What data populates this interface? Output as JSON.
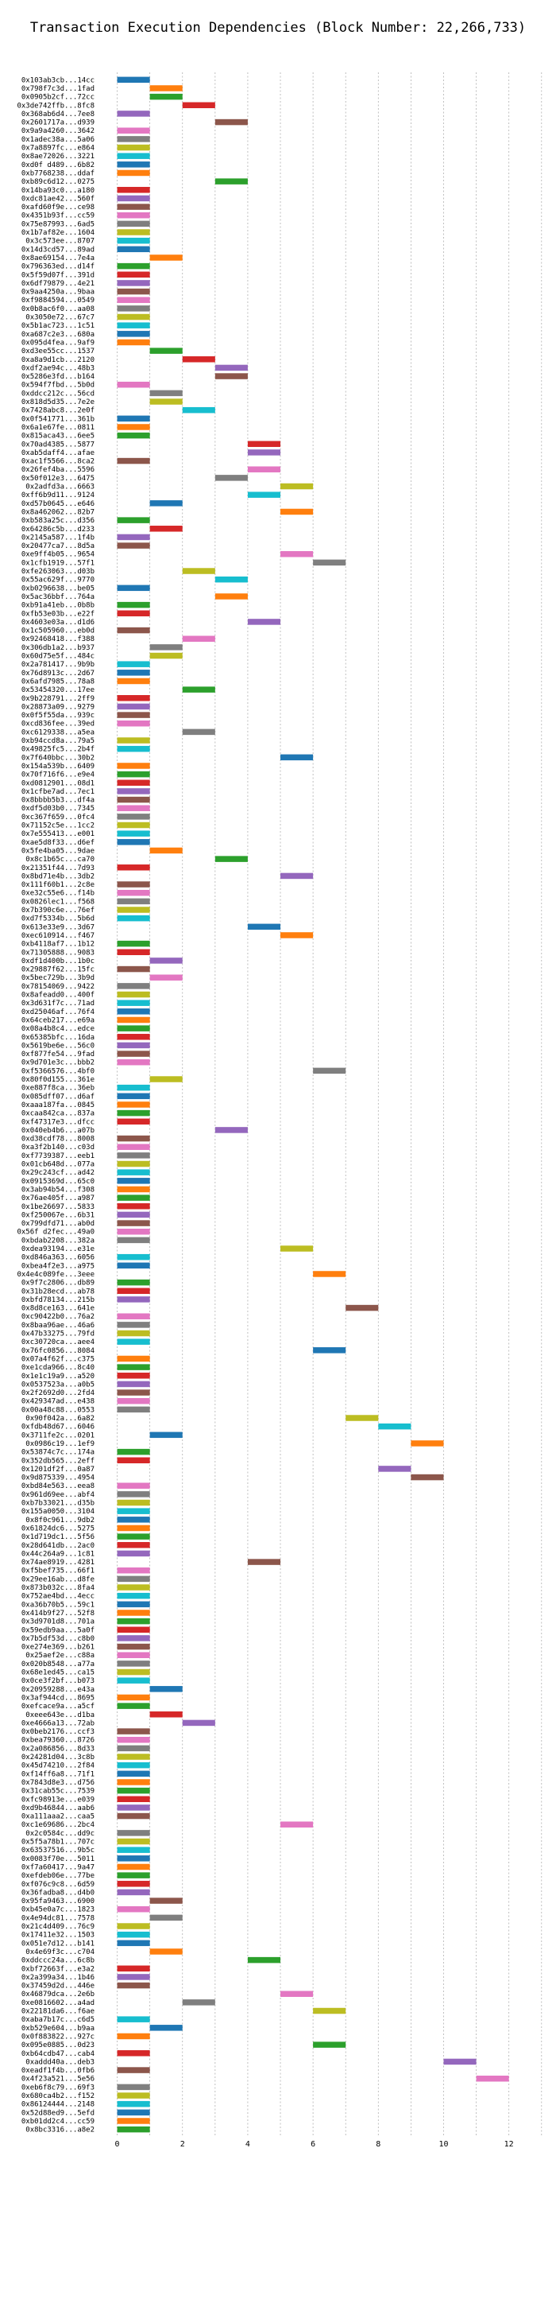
{
  "chart_data": {
    "type": "bar",
    "orientation": "horizontal",
    "title": "Transaction Execution Dependencies (Block Number: 22,266,733)",
    "xlabel": "",
    "ylabel": "",
    "xlim": [
      -0.5,
      13.2
    ],
    "xticks": [
      0,
      2,
      4,
      6,
      8,
      10,
      12
    ],
    "grid": "vertical dotted",
    "bar_width": 1,
    "palette": [
      "#1f77b4",
      "#ff7f0e",
      "#2ca02c",
      "#d62728",
      "#9467bd",
      "#8c564b",
      "#e377c2",
      "#7f7f7f",
      "#bcbd22",
      "#17becf"
    ],
    "transactions": [
      {
        "label": "0x103ab3cb...14cc",
        "start": 0
      },
      {
        "label": "0x798f7c3d...1fad",
        "start": 1
      },
      {
        "label": "0x0905b2cf...72cc",
        "start": 1
      },
      {
        "label": "0x3de742ffb...8fc8",
        "start": 2
      },
      {
        "label": "0x368ab6d4...7ee8",
        "start": 0
      },
      {
        "label": "0x2601717a...d939",
        "start": 3
      },
      {
        "label": "0x9a9a4260...3642",
        "start": 0
      },
      {
        "label": "0x1adec38a...5a06",
        "start": 0
      },
      {
        "label": "0x7a8897fc...e864",
        "start": 0
      },
      {
        "label": "0x8ae72026...3221",
        "start": 0
      },
      {
        "label": "0xd0f d489...6b82",
        "start": 0
      },
      {
        "label": "0xb7768238...ddaf",
        "start": 0
      },
      {
        "label": "0xb89c6d12...0275",
        "start": 3
      },
      {
        "label": "0x14ba93c0...a180",
        "start": 0
      },
      {
        "label": "0xdc81ae42...560f",
        "start": 0
      },
      {
        "label": "0xafd60f9e...ce98",
        "start": 0
      },
      {
        "label": "0x4351b93f...cc59",
        "start": 0
      },
      {
        "label": "0x75e87993...6ad5",
        "start": 0
      },
      {
        "label": "0x1b7af82e...1604",
        "start": 0
      },
      {
        "label": "0x3c573ee...8707",
        "start": 0
      },
      {
        "label": "0x14d3cd57...89ad",
        "start": 0
      },
      {
        "label": "0x8ae69154...7e4a",
        "start": 1
      },
      {
        "label": "0x796363ed...d14f",
        "start": 0
      },
      {
        "label": "0x5f59d07f...391d",
        "start": 0
      },
      {
        "label": "0x6df79879...4e21",
        "start": 0
      },
      {
        "label": "0x9aa4250a...9baa",
        "start": 0
      },
      {
        "label": "0xf9884594...0549",
        "start": 0
      },
      {
        "label": "0x0b8ac6f0...aa08",
        "start": 0
      },
      {
        "label": "0x3050e72...67c7",
        "start": 0
      },
      {
        "label": "0x5b1ac723...1c51",
        "start": 0
      },
      {
        "label": "0xa687c2e3...680a",
        "start": 0
      },
      {
        "label": "0x095d4fea...9af9",
        "start": 0
      },
      {
        "label": "0xd3ee55cc...1537",
        "start": 1
      },
      {
        "label": "0xa8a9d1cb...2120",
        "start": 2
      },
      {
        "label": "0xdf2ae94c...48b3",
        "start": 3
      },
      {
        "label": "0x5286e3fd...b164",
        "start": 3
      },
      {
        "label": "0x594f7fbd...5b0d",
        "start": 0
      },
      {
        "label": "0xddcc212c...56cd",
        "start": 1
      },
      {
        "label": "0x818d5d35...7e2e",
        "start": 1
      },
      {
        "label": "0x7428abc8...2e0f",
        "start": 2
      },
      {
        "label": "0x0f541771...361b",
        "start": 0
      },
      {
        "label": "0x6a1e67fe...0811",
        "start": 0
      },
      {
        "label": "0x815aca43...6ee5",
        "start": 0
      },
      {
        "label": "0x70ad4385...5877",
        "start": 4
      },
      {
        "label": "0xab5daff4...afae",
        "start": 4
      },
      {
        "label": "0xac1f5566...8ca2",
        "start": 0
      },
      {
        "label": "0x26fef4ba...5596",
        "start": 4
      },
      {
        "label": "0x50f012e3...6475",
        "start": 3
      },
      {
        "label": "0x2adfd3a...6663",
        "start": 5
      },
      {
        "label": "0xff6b9d11...9124",
        "start": 4
      },
      {
        "label": "0xd57b0645...e646",
        "start": 1
      },
      {
        "label": "0x8a462062...82b7",
        "start": 5
      },
      {
        "label": "0xb583a25c...d356",
        "start": 0
      },
      {
        "label": "0x64286c5b...d233",
        "start": 1
      },
      {
        "label": "0x2145a587...1f4b",
        "start": 0
      },
      {
        "label": "0x20477ca7...8d5a",
        "start": 0
      },
      {
        "label": "0xe9ff4b05...9654",
        "start": 5
      },
      {
        "label": "0x1cfb1919...57f1",
        "start": 6
      },
      {
        "label": "0xfe263063...d03b",
        "start": 2
      },
      {
        "label": "0x55ac629f...9770",
        "start": 3
      },
      {
        "label": "0xb0296638...be05",
        "start": 0
      },
      {
        "label": "0x5ac36bbf...764a",
        "start": 3
      },
      {
        "label": "0xb91a41eb...0b8b",
        "start": 0
      },
      {
        "label": "0xfb53e03b...e22f",
        "start": 0
      },
      {
        "label": "0x4603e03a...d1d6",
        "start": 4
      },
      {
        "label": "0x1c505960...eb0d",
        "start": 0
      },
      {
        "label": "0x92468418...f388",
        "start": 2
      },
      {
        "label": "0x306db1a2...b937",
        "start": 1
      },
      {
        "label": "0x60d75e5f...484c",
        "start": 1
      },
      {
        "label": "0x2a781417...9b9b",
        "start": 0
      },
      {
        "label": "0x76d8913c...2d67",
        "start": 0
      },
      {
        "label": "0x6afd7985...78a8",
        "start": 0
      },
      {
        "label": "0x53454320...17ee",
        "start": 2
      },
      {
        "label": "0x9b228791...2ff9",
        "start": 0
      },
      {
        "label": "0x28873a09...9279",
        "start": 0
      },
      {
        "label": "0x0f5f55da...939c",
        "start": 0
      },
      {
        "label": "0xcd836fee...39ed",
        "start": 0
      },
      {
        "label": "0xc6129338...a5ea",
        "start": 2
      },
      {
        "label": "0xb94ccd8a...79a5",
        "start": 0
      },
      {
        "label": "0x49825fc5...2b4f",
        "start": 0
      },
      {
        "label": "0x7f640bbc...30b2",
        "start": 5
      },
      {
        "label": "0x154a539b...6409",
        "start": 0
      },
      {
        "label": "0x70f716f6...e9e4",
        "start": 0
      },
      {
        "label": "0xd0812901...08d1",
        "start": 0
      },
      {
        "label": "0x1cfbe7ad...7ec1",
        "start": 0
      },
      {
        "label": "0x8bbbb5b3...df4a",
        "start": 0
      },
      {
        "label": "0xdf5d03b0...7345",
        "start": 0
      },
      {
        "label": "0xc367f659...0fc4",
        "start": 0
      },
      {
        "label": "0x71152c5e...1cc2",
        "start": 0
      },
      {
        "label": "0x7e555413...e001",
        "start": 0
      },
      {
        "label": "0xae5d8f33...d6ef",
        "start": 0
      },
      {
        "label": "0x5fe4ba05...9dae",
        "start": 1
      },
      {
        "label": "0x8c1b65c...ca70",
        "start": 3
      },
      {
        "label": "0x21351f44...7d93",
        "start": 0
      },
      {
        "label": "0x8bd71e4b...3db2",
        "start": 5
      },
      {
        "label": "0x111f60b1...2c8e",
        "start": 0
      },
      {
        "label": "0xe32c55e6...f14b",
        "start": 0
      },
      {
        "label": "0x0826lec1...f568",
        "start": 0
      },
      {
        "label": "0x7b390c6e...76ef",
        "start": 0
      },
      {
        "label": "0xd7f5334b...5b6d",
        "start": 0
      },
      {
        "label": "0x613e33e9...3d67",
        "start": 4
      },
      {
        "label": "0xec610914...f467",
        "start": 5
      },
      {
        "label": "0xb4118af7...1b12",
        "start": 0
      },
      {
        "label": "0x71305888...9083",
        "start": 0
      },
      {
        "label": "0xdf1d400b...1b0c",
        "start": 1
      },
      {
        "label": "0x29887f62...15fc",
        "start": 0
      },
      {
        "label": "0x5bec729b...3b9d",
        "start": 1
      },
      {
        "label": "0x78154069...9422",
        "start": 0
      },
      {
        "label": "0x8afeadd0...400f",
        "start": 0
      },
      {
        "label": "0x3d631f7c...71ad",
        "start": 0
      },
      {
        "label": "0xd25046af...76f4",
        "start": 0
      },
      {
        "label": "0x64ceb217...e69a",
        "start": 0
      },
      {
        "label": "0x08a4b8c4...edce",
        "start": 0
      },
      {
        "label": "0x65385bfc...16da",
        "start": 0
      },
      {
        "label": "0x5619be6e...56c0",
        "start": 0
      },
      {
        "label": "0xf877fe54...9fad",
        "start": 0
      },
      {
        "label": "0x9d701e3c...bbb2",
        "start": 0
      },
      {
        "label": "0xf5366576...4bf0",
        "start": 6
      },
      {
        "label": "0x80f0d155...361e",
        "start": 1
      },
      {
        "label": "0xe887f8ca...36eb",
        "start": 0
      },
      {
        "label": "0x085dff07...d6af",
        "start": 0
      },
      {
        "label": "0xaaa187fa...0845",
        "start": 0
      },
      {
        "label": "0xcaa842ca...837a",
        "start": 0
      },
      {
        "label": "0xf47317e3...dfcc",
        "start": 0
      },
      {
        "label": "0x040eb4b6...a07b",
        "start": 3
      },
      {
        "label": "0xd38cdf78...8008",
        "start": 0
      },
      {
        "label": "0xa3f2b140...c03d",
        "start": 0
      },
      {
        "label": "0xf7739387...eeb1",
        "start": 0
      },
      {
        "label": "0x01cb648d...077a",
        "start": 0
      },
      {
        "label": "0x29c243cf...ad42",
        "start": 0
      },
      {
        "label": "0x0915369d...65c0",
        "start": 0
      },
      {
        "label": "0x3ab94b54...f308",
        "start": 0
      },
      {
        "label": "0x76ae405f...a987",
        "start": 0
      },
      {
        "label": "0x1be26697...5833",
        "start": 0
      },
      {
        "label": "0xf250067e...6b31",
        "start": 0
      },
      {
        "label": "0x799dfd71...ab0d",
        "start": 0
      },
      {
        "label": "0x56f d2fec...49a0",
        "start": 0
      },
      {
        "label": "0xbdab2208...382a",
        "start": 0
      },
      {
        "label": "0xdea93194...e31e",
        "start": 5
      },
      {
        "label": "0xd846a363...6056",
        "start": 0
      },
      {
        "label": "0xbea4f2e3...a975",
        "start": 0
      },
      {
        "label": "0x4e4c089fe...3eee",
        "start": 6
      },
      {
        "label": "0x9f7c2806...db89",
        "start": 0
      },
      {
        "label": "0x31b28ecd...ab78",
        "start": 0
      },
      {
        "label": "0xbfd78134...215b",
        "start": 0
      },
      {
        "label": "0x8d8ce163...641e",
        "start": 7
      },
      {
        "label": "0xc90422b0...76a2",
        "start": 0
      },
      {
        "label": "0x8baa96ae...46a6",
        "start": 0
      },
      {
        "label": "0x47b33275...79fd",
        "start": 0
      },
      {
        "label": "0xc30720ca...aee4",
        "start": 0
      },
      {
        "label": "0x76fc0856...8084",
        "start": 6
      },
      {
        "label": "0x07a4f62f...c375",
        "start": 0
      },
      {
        "label": "0xe1cda966...8c40",
        "start": 0
      },
      {
        "label": "0x1e1c19a9...a520",
        "start": 0
      },
      {
        "label": "0x0537523a...a0b5",
        "start": 0
      },
      {
        "label": "0x2f2692d0...2fd4",
        "start": 0
      },
      {
        "label": "0x429347ad...e438",
        "start": 0
      },
      {
        "label": "0x00a48c88...0553",
        "start": 0
      },
      {
        "label": "0x90f042a...6a82",
        "start": 7
      },
      {
        "label": "0xfdb48d67...6046",
        "start": 8
      },
      {
        "label": "0x3711fe2c...0201",
        "start": 1
      },
      {
        "label": "0x0986c19...1ef9",
        "start": 9
      },
      {
        "label": "0x53874c7c...174a",
        "start": 0
      },
      {
        "label": "0x352db565...2eff",
        "start": 0
      },
      {
        "label": "0x1201df2f...0a87",
        "start": 8
      },
      {
        "label": "0x9d875339...4954",
        "start": 9
      },
      {
        "label": "0xbd84e563...eea8",
        "start": 0
      },
      {
        "label": "0x961d69ee...abf4",
        "start": 0
      },
      {
        "label": "0xb7b33021...d35b",
        "start": 0
      },
      {
        "label": "0x155a0050...3104",
        "start": 0
      },
      {
        "label": "0x8f0c961...9db2",
        "start": 0
      },
      {
        "label": "0x61824dc6...5275",
        "start": 0
      },
      {
        "label": "0x1d719dc1...5f56",
        "start": 0
      },
      {
        "label": "0x28d641db...2ac0",
        "start": 0
      },
      {
        "label": "0x44c264a9...1c81",
        "start": 0
      },
      {
        "label": "0x74ae8919...4281",
        "start": 4
      },
      {
        "label": "0xf5bef735...66f1",
        "start": 0
      },
      {
        "label": "0x29ee16ab...d8fe",
        "start": 0
      },
      {
        "label": "0x873b032c...8fa4",
        "start": 0
      },
      {
        "label": "0x752ae4bd...4ecc",
        "start": 0
      },
      {
        "label": "0xa36b70b5...59c1",
        "start": 0
      },
      {
        "label": "0x414b9f27...52f8",
        "start": 0
      },
      {
        "label": "0x3d9701d8...701a",
        "start": 0
      },
      {
        "label": "0x59edb9aa...5a0f",
        "start": 0
      },
      {
        "label": "0x7b5df53d...c8b0",
        "start": 0
      },
      {
        "label": "0xe274e369...b261",
        "start": 0
      },
      {
        "label": "0x25aef2e...c88a",
        "start": 0
      },
      {
        "label": "0x020b8548...a77a",
        "start": 0
      },
      {
        "label": "0x68e1ed45...ca15",
        "start": 0
      },
      {
        "label": "0x0ce3f2bf...b073",
        "start": 0
      },
      {
        "label": "0x20959288...e43a",
        "start": 1
      },
      {
        "label": "0x3af944cd...8695",
        "start": 0
      },
      {
        "label": "0xefcace9a...a5cf",
        "start": 0
      },
      {
        "label": "0xeee643e...d1ba",
        "start": 1
      },
      {
        "label": "0xe4666a13...72ab",
        "start": 2
      },
      {
        "label": "0x0beb2176...ccf3",
        "start": 0
      },
      {
        "label": "0xbea79360...8726",
        "start": 0
      },
      {
        "label": "0x2a086856...8d33",
        "start": 0
      },
      {
        "label": "0x24281d04...3c8b",
        "start": 0
      },
      {
        "label": "0x45d74210...2f84",
        "start": 0
      },
      {
        "label": "0xf14ff6a8...71f1",
        "start": 0
      },
      {
        "label": "0x7843d8e3...d756",
        "start": 0
      },
      {
        "label": "0x31cab55c...7539",
        "start": 0
      },
      {
        "label": "0xfc98913e...e039",
        "start": 0
      },
      {
        "label": "0xd9b46844...aab6",
        "start": 0
      },
      {
        "label": "0xa111aaa2...caa5",
        "start": 0
      },
      {
        "label": "0xc1e69686...2bc4",
        "start": 5
      },
      {
        "label": "0x2c0584c...dd9c",
        "start": 0
      },
      {
        "label": "0x5f5a78b1...707c",
        "start": 0
      },
      {
        "label": "0x63537516...9b5c",
        "start": 0
      },
      {
        "label": "0x0083f70e...5011",
        "start": 0
      },
      {
        "label": "0xf7a60417...9a47",
        "start": 0
      },
      {
        "label": "0xefdeb06e...77be",
        "start": 0
      },
      {
        "label": "0xf076c9c8...6d59",
        "start": 0
      },
      {
        "label": "0x36fadba8...d4b0",
        "start": 0
      },
      {
        "label": "0x95fa9463...6900",
        "start": 1
      },
      {
        "label": "0xb45e0a7c...1823",
        "start": 0
      },
      {
        "label": "0x4e94dc81...7578",
        "start": 1
      },
      {
        "label": "0x21c4d409...76c9",
        "start": 0
      },
      {
        "label": "0x17411e32...1503",
        "start": 0
      },
      {
        "label": "0x051e7d12...b141",
        "start": 0
      },
      {
        "label": "0x4e69f3c...c704",
        "start": 1
      },
      {
        "label": "0xddccc24a...6c8b",
        "start": 4
      },
      {
        "label": "0xbf72663f...e3a2",
        "start": 0
      },
      {
        "label": "0x2a399a34...1b46",
        "start": 0
      },
      {
        "label": "0x37459d2d...446e",
        "start": 0
      },
      {
        "label": "0x46879dca...2e6b",
        "start": 5
      },
      {
        "label": "0xe0816602...a4ad",
        "start": 2
      },
      {
        "label": "0x22181da6...f6ae",
        "start": 6
      },
      {
        "label": "0xaba7b17c...c6d5",
        "start": 0
      },
      {
        "label": "0xb529e604...b9aa",
        "start": 1
      },
      {
        "label": "0x0f883822...927c",
        "start": 0
      },
      {
        "label": "0x095e0885...0d23",
        "start": 6
      },
      {
        "label": "0xb64cdb47...cab4",
        "start": 0
      },
      {
        "label": "0xaddd40a...deb3",
        "start": 10
      },
      {
        "label": "0xeadf1f4b...0fb6",
        "start": 0
      },
      {
        "label": "0x4f23a521...5e56",
        "start": 11
      },
      {
        "label": "0xeb6f8c79...69f3",
        "start": 0
      },
      {
        "label": "0x680ca4b2...f152",
        "start": 0
      },
      {
        "label": "0x86124444...2148",
        "start": 0
      },
      {
        "label": "0x52d88ed9...5efd",
        "start": 0
      },
      {
        "label": "0xb01dd2c4...cc59",
        "start": 0
      },
      {
        "label": "0x8bc3316...a8e2",
        "start": 0
      }
    ]
  }
}
